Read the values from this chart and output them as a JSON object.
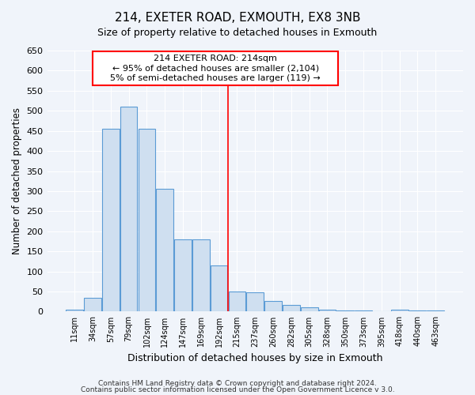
{
  "title1": "214, EXETER ROAD, EXMOUTH, EX8 3NB",
  "title2": "Size of property relative to detached houses in Exmouth",
  "xlabel": "Distribution of detached houses by size in Exmouth",
  "ylabel": "Number of detached properties",
  "categories": [
    "11sqm",
    "34sqm",
    "57sqm",
    "79sqm",
    "102sqm",
    "124sqm",
    "147sqm",
    "169sqm",
    "192sqm",
    "215sqm",
    "237sqm",
    "260sqm",
    "282sqm",
    "305sqm",
    "328sqm",
    "350sqm",
    "373sqm",
    "395sqm",
    "418sqm",
    "440sqm",
    "463sqm"
  ],
  "values": [
    5,
    35,
    455,
    510,
    455,
    305,
    180,
    180,
    115,
    50,
    48,
    27,
    17,
    10,
    5,
    3,
    2,
    1,
    5,
    3,
    3
  ],
  "bar_color": "#cfdff0",
  "bar_edge_color": "#5b9bd5",
  "ylim": [
    0,
    650
  ],
  "yticks": [
    0,
    50,
    100,
    150,
    200,
    250,
    300,
    350,
    400,
    450,
    500,
    550,
    600,
    650
  ],
  "red_line_index": 9,
  "annotation_title": "214 EXETER ROAD: 214sqm",
  "annotation_line1": "← 95% of detached houses are smaller (2,104)",
  "annotation_line2": "5% of semi-detached houses are larger (119) →",
  "footer1": "Contains HM Land Registry data © Crown copyright and database right 2024.",
  "footer2": "Contains public sector information licensed under the Open Government Licence v 3.0.",
  "bg_color": "#f0f4fa",
  "plot_bg_color": "#f0f4fa"
}
